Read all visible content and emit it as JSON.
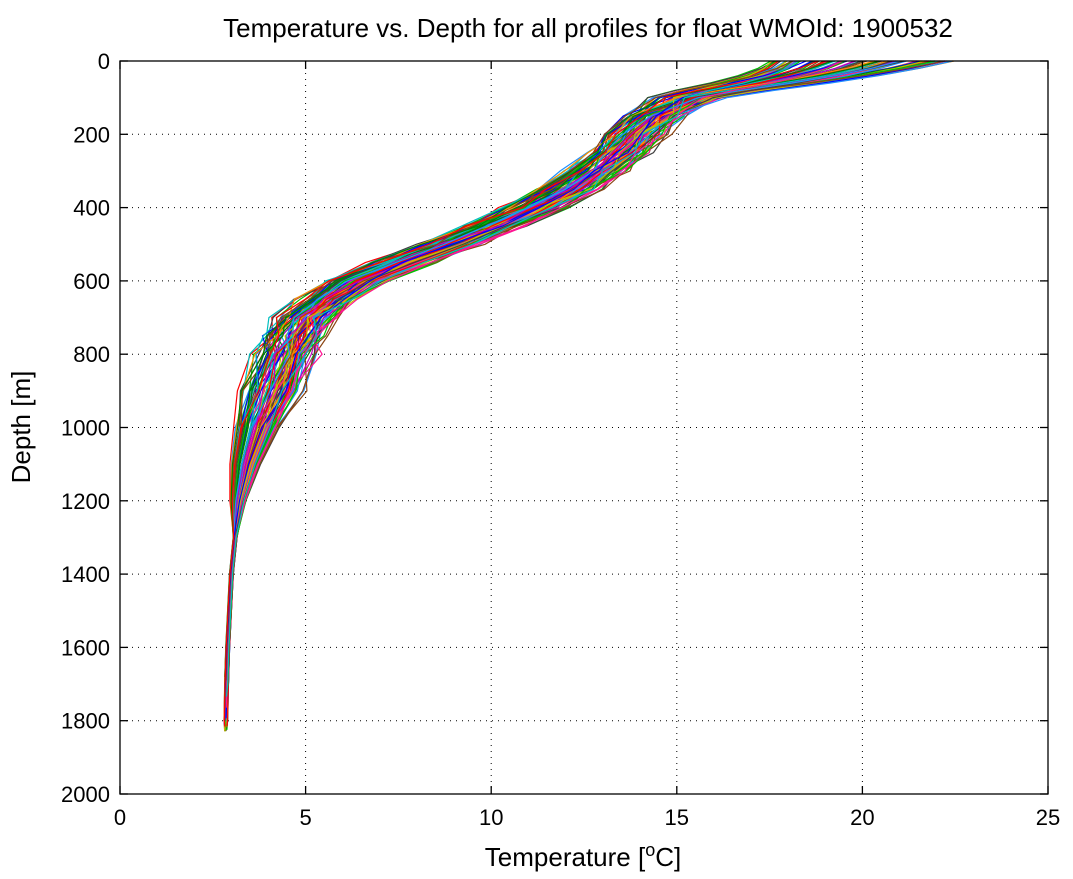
{
  "chart_data": {
    "type": "line",
    "title": "Temperature vs. Depth for all profiles for float WMOId: 1900532",
    "xlabel_main": "Temperature [",
    "xlabel_sup": "o",
    "xlabel_end": "C]",
    "ylabel": "Depth [m]",
    "xlim": [
      0,
      25
    ],
    "ylim": [
      0,
      2000
    ],
    "y_reversed": true,
    "grid": true,
    "x_ticks": [
      0,
      5,
      10,
      15,
      20,
      25
    ],
    "y_ticks": [
      0,
      200,
      400,
      600,
      800,
      1000,
      1200,
      1400,
      1600,
      1800,
      2000
    ],
    "x_tick_labels": [
      "0",
      "5",
      "10",
      "15",
      "20",
      "25"
    ],
    "y_tick_labels": [
      "0",
      "200",
      "400",
      "600",
      "800",
      "1000",
      "1200",
      "1400",
      "1600",
      "1800",
      "2000"
    ],
    "profile_count": 100,
    "depths": [
      0,
      20,
      40,
      60,
      80,
      100,
      150,
      200,
      250,
      300,
      350,
      400,
      450,
      500,
      550,
      600,
      650,
      700,
      750,
      800,
      900,
      1000,
      1100,
      1200,
      1300,
      1400,
      1500,
      1600,
      1700,
      1800
    ],
    "mean_profile": {
      "temperature": [
        20.0,
        19.4,
        18.6,
        17.6,
        16.4,
        15.4,
        14.4,
        13.9,
        13.4,
        12.8,
        12.1,
        11.2,
        10.1,
        8.9,
        7.6,
        6.4,
        5.6,
        5.0,
        4.7,
        4.5,
        4.1,
        3.7,
        3.4,
        3.2,
        3.1,
        3.0,
        2.95,
        2.9,
        2.87,
        2.85
      ]
    },
    "colors": [
      "#0000ff",
      "#008000",
      "#ff0000",
      "#00bfbf",
      "#bf00bf",
      "#bfbf00",
      "#404040",
      "#ff8c00",
      "#00c000",
      "#8b4513",
      "#1e90ff",
      "#ff1493"
    ]
  }
}
